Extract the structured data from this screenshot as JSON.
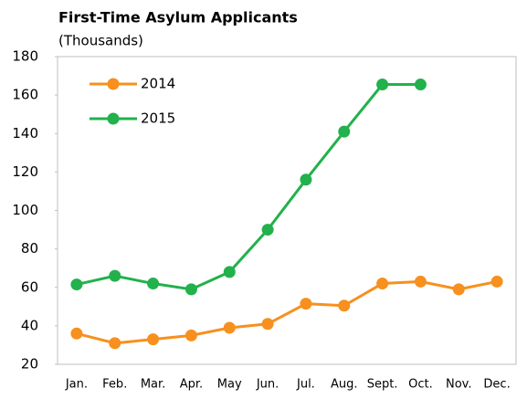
{
  "chart_data": {
    "type": "line",
    "title": "First-Time Asylum Applicants",
    "subtitle": "(Thousands)",
    "categories": [
      "Jan.",
      "Feb.",
      "Mar.",
      "Apr.",
      "May",
      "Jun.",
      "Jul.",
      "Aug.",
      "Sept.",
      "Oct.",
      "Nov.",
      "Dec."
    ],
    "series": [
      {
        "name": "2014",
        "color": "#f7901e",
        "values": [
          36,
          31,
          33,
          35,
          39,
          41,
          51.5,
          50.5,
          62,
          63,
          59,
          63
        ]
      },
      {
        "name": "2015",
        "color": "#22b14c",
        "values": [
          61.5,
          66,
          62,
          59,
          68,
          90,
          116,
          141,
          165.5,
          165.5,
          null,
          null
        ]
      }
    ],
    "ylim": [
      20,
      180
    ],
    "yticks": [
      20,
      40,
      60,
      80,
      100,
      120,
      140,
      160,
      180
    ],
    "legend": "upper left"
  }
}
